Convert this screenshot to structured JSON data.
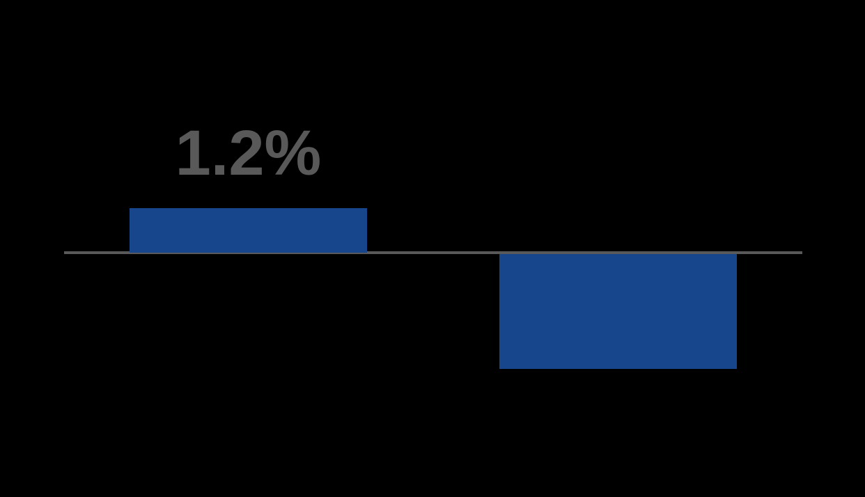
{
  "chart_data": {
    "type": "bar",
    "categories": [
      "",
      ""
    ],
    "values": [
      1.2,
      -3.1
    ],
    "data_labels": [
      "1.2%",
      ""
    ],
    "title": "",
    "xlabel": "",
    "ylabel": "",
    "axis_baseline_value": 0,
    "grid": false,
    "legend": false,
    "colors": {
      "bar": "#17468C",
      "axis_line": "#595959",
      "data_label": "#595959",
      "background": "#000000"
    }
  }
}
